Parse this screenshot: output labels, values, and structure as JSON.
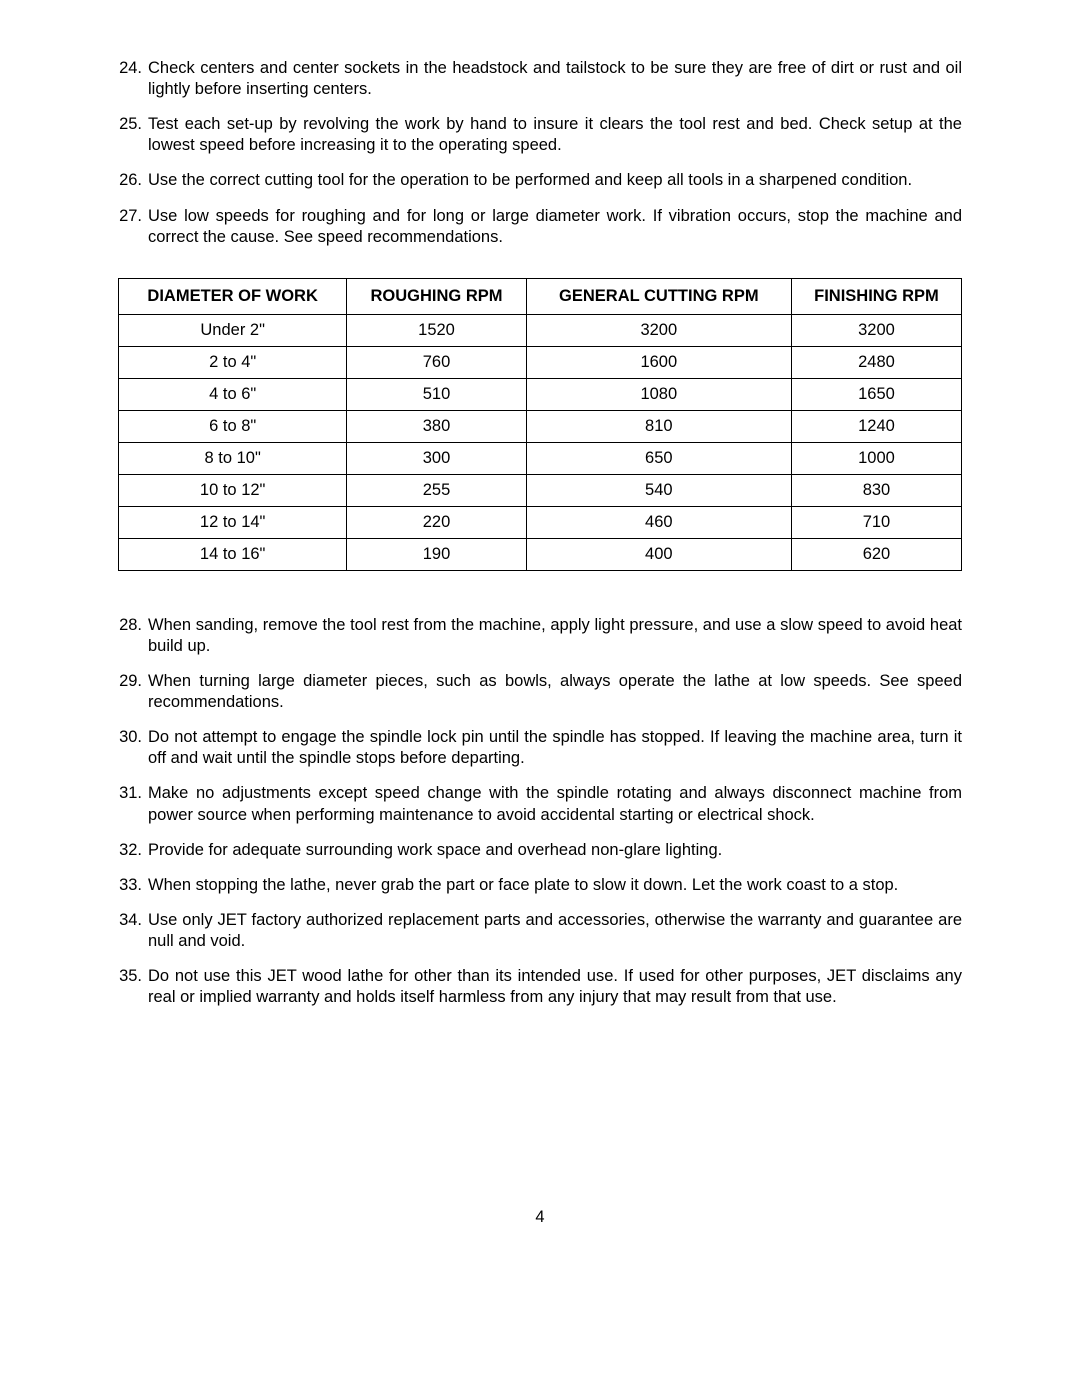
{
  "page_number": "4",
  "list_top": [
    {
      "n": "24.",
      "t": "Check centers and center sockets in the headstock and tailstock to be sure they are free of dirt or rust and oil lightly before inserting centers."
    },
    {
      "n": "25.",
      "t": "Test each set-up by revolving the work by hand to insure it clears the tool rest and bed.   Check setup at the lowest speed before increasing it to the operating speed."
    },
    {
      "n": "26.",
      "t": "Use the correct cutting tool for the operation to be performed and keep all tools in a sharpened condition."
    },
    {
      "n": "27.",
      "t": "Use low speeds for roughing and for long or large diameter work.   If vibration occurs, stop the machine and correct the cause.   See speed recommendations."
    }
  ],
  "table": {
    "type": "table",
    "columns": [
      "DIAMETER OF WORK",
      "ROUGHING RPM",
      "GENERAL CUTTING RPM",
      "FINISHING RPM"
    ],
    "rows": [
      [
        "Under 2\"",
        "1520",
        "3200",
        "3200"
      ],
      [
        "2 to 4\"",
        "760",
        "1600",
        "2480"
      ],
      [
        "4 to 6\"",
        "510",
        "1080",
        "1650"
      ],
      [
        "6 to 8\"",
        "380",
        "810",
        "1240"
      ],
      [
        "8 to 10\"",
        "300",
        "650",
        "1000"
      ],
      [
        "10 to 12\"",
        "255",
        "540",
        "830"
      ],
      [
        "12 to 14\"",
        "220",
        "460",
        "710"
      ],
      [
        "14 to 16\"",
        "190",
        "400",
        "620"
      ]
    ],
    "border_color": "#000000",
    "background_color": "#ffffff",
    "header_fontweight": "bold",
    "fontsize": 16.5,
    "col_widths_pct": [
      25,
      25,
      25,
      25
    ],
    "text_align": "center"
  },
  "list_bottom": [
    {
      "n": "28.",
      "t": "When sanding, remove the tool rest from the machine, apply light pressure, and use a slow speed to avoid heat build up."
    },
    {
      "n": "29.",
      "t": "When turning large diameter pieces, such as bowls, always operate the lathe at low speeds.   See speed recommendations."
    },
    {
      "n": "30.",
      "t": "Do not attempt to engage the spindle lock pin until the spindle has stopped.   If leaving the machine area, turn it off and wait until the spindle stops before departing."
    },
    {
      "n": "31.",
      "t": "Make no adjustments except speed change with the spindle rotating and always disconnect machine from power source when performing maintenance to avoid accidental starting or electrical shock."
    },
    {
      "n": "32.",
      "t": "Provide for adequate surrounding work space and overhead non-glare lighting."
    },
    {
      "n": "33.",
      "t": "When stopping the lathe, never grab the part or face plate to slow it down.   Let the work coast to a stop."
    },
    {
      "n": "34.",
      "t": "Use only JET factory authorized replacement parts and accessories, otherwise the warranty and guarantee are null and void."
    },
    {
      "n": "35.",
      "t": "Do not use this JET wood lathe for other than its intended use.   If used for other purposes, JET disclaims any real or implied warranty and holds itself harmless from any injury that may result from that use."
    }
  ]
}
